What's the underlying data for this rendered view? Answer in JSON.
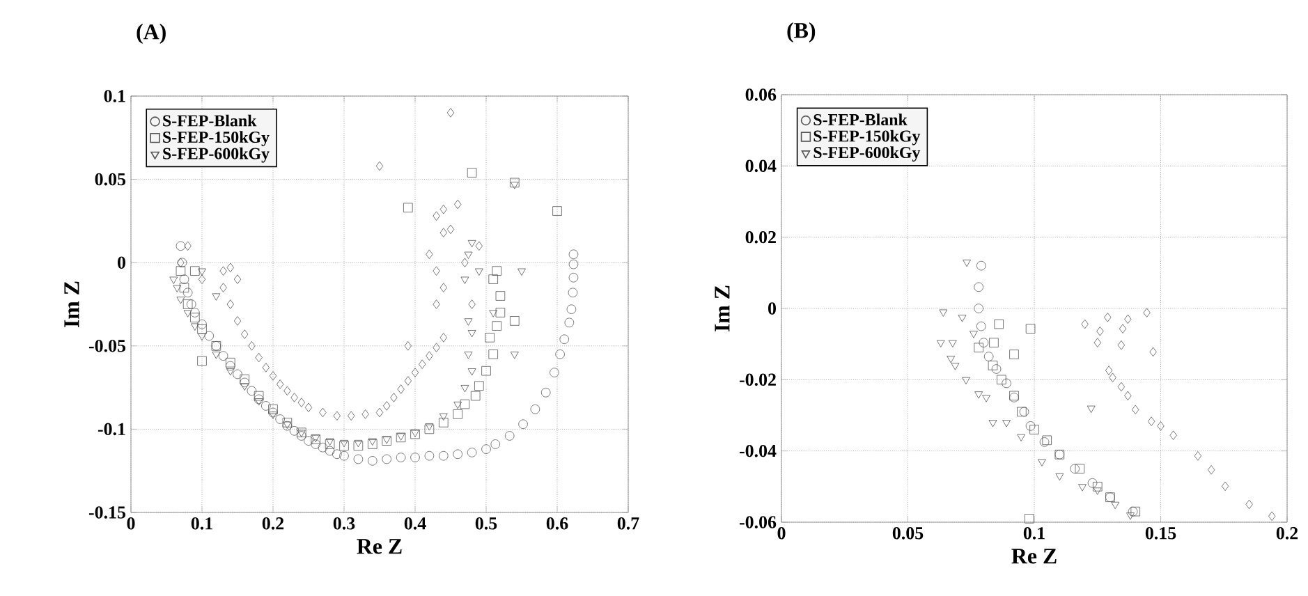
{
  "chart_data": [
    {
      "type": "scatter",
      "title": "(A)",
      "xlabel": "Re Z",
      "ylabel": "Im Z",
      "xlim": [
        0,
        0.7
      ],
      "ylim": [
        -0.15,
        0.1
      ],
      "xticks": [
        0,
        0.1,
        0.2,
        0.3,
        0.4,
        0.5,
        0.6,
        0.7
      ],
      "yticks": [
        -0.15,
        -0.1,
        -0.05,
        0,
        0.05,
        0.1
      ],
      "grid": true,
      "legend": "top left",
      "series": [
        {
          "name": "S-FEP-Blank",
          "marker": "circle",
          "color": "#555555",
          "x": [
            0.07,
            0.072,
            0.075,
            0.08,
            0.085,
            0.09,
            0.1,
            0.11,
            0.12,
            0.13,
            0.14,
            0.15,
            0.16,
            0.17,
            0.18,
            0.19,
            0.2,
            0.21,
            0.22,
            0.23,
            0.24,
            0.25,
            0.26,
            0.27,
            0.28,
            0.29,
            0.3,
            0.32,
            0.34,
            0.36,
            0.38,
            0.4,
            0.42,
            0.44,
            0.46,
            0.48,
            0.5,
            0.513,
            0.533,
            0.552,
            0.569,
            0.584,
            0.596,
            0.604,
            0.61,
            0.617,
            0.62,
            0.622,
            0.623,
            0.623,
            0.623
          ],
          "values": [
            0.01,
            0.0,
            -0.01,
            -0.018,
            -0.025,
            -0.03,
            -0.037,
            -0.044,
            -0.05,
            -0.056,
            -0.062,
            -0.067,
            -0.072,
            -0.077,
            -0.082,
            -0.086,
            -0.09,
            -0.094,
            -0.098,
            -0.101,
            -0.104,
            -0.107,
            -0.109,
            -0.111,
            -0.113,
            -0.115,
            -0.116,
            -0.118,
            -0.119,
            -0.118,
            -0.117,
            -0.117,
            -0.116,
            -0.116,
            -0.115,
            -0.114,
            -0.112,
            -0.109,
            -0.104,
            -0.097,
            -0.088,
            -0.078,
            -0.066,
            -0.055,
            -0.046,
            -0.036,
            -0.028,
            -0.018,
            -0.009,
            -0.001,
            0.005
          ]
        },
        {
          "name": "S-FEP-150kGy",
          "marker": "square",
          "color": "#555555",
          "x": [
            0.07,
            0.075,
            0.08,
            0.09,
            0.1,
            0.12,
            0.14,
            0.16,
            0.18,
            0.2,
            0.22,
            0.24,
            0.26,
            0.28,
            0.3,
            0.32,
            0.34,
            0.36,
            0.38,
            0.4,
            0.42,
            0.44,
            0.46,
            0.47,
            0.485,
            0.49,
            0.5,
            0.51,
            0.505,
            0.515,
            0.52,
            0.52,
            0.51,
            0.515,
            0.54,
            0.1,
            0.09,
            0.39,
            0.48,
            0.54,
            0.6
          ],
          "values": [
            -0.005,
            -0.015,
            -0.025,
            -0.033,
            -0.04,
            -0.05,
            -0.06,
            -0.07,
            -0.08,
            -0.088,
            -0.096,
            -0.102,
            -0.106,
            -0.109,
            -0.11,
            -0.11,
            -0.109,
            -0.107,
            -0.105,
            -0.103,
            -0.1,
            -0.096,
            -0.091,
            -0.085,
            -0.08,
            -0.074,
            -0.065,
            -0.055,
            -0.045,
            -0.038,
            -0.03,
            -0.02,
            -0.01,
            -0.005,
            -0.035,
            -0.059,
            -0.005,
            0.033,
            0.054,
            0.048,
            0.031
          ]
        },
        {
          "name": "S-FEP-600kGy",
          "marker": "triangle",
          "color": "#555555",
          "x": [
            0.06,
            0.065,
            0.07,
            0.08,
            0.09,
            0.1,
            0.12,
            0.14,
            0.16,
            0.18,
            0.2,
            0.22,
            0.24,
            0.26,
            0.28,
            0.3,
            0.32,
            0.34,
            0.36,
            0.38,
            0.4,
            0.42,
            0.44,
            0.46,
            0.47,
            0.48,
            0.475,
            0.48,
            0.475,
            0.49,
            0.475,
            0.48,
            0.54,
            0.55,
            0.54,
            0.51,
            0.47,
            0.12,
            0.1
          ],
          "values": [
            -0.01,
            -0.015,
            -0.022,
            -0.03,
            -0.038,
            -0.044,
            -0.055,
            -0.065,
            -0.074,
            -0.083,
            -0.091,
            -0.097,
            -0.102,
            -0.105,
            -0.107,
            -0.108,
            -0.108,
            -0.107,
            -0.106,
            -0.104,
            -0.102,
            -0.098,
            -0.092,
            -0.085,
            -0.075,
            -0.065,
            -0.055,
            -0.042,
            -0.035,
            -0.005,
            0.005,
            0.012,
            0.047,
            -0.005,
            -0.055,
            -0.03,
            -0.01,
            -0.02,
            -0.005
          ]
        },
        {
          "marker": "diamond",
          "color": "#555555",
          "x": [
            0.13,
            0.14,
            0.15,
            0.13,
            0.14,
            0.15,
            0.16,
            0.17,
            0.18,
            0.19,
            0.2,
            0.21,
            0.22,
            0.23,
            0.24,
            0.25,
            0.27,
            0.29,
            0.31,
            0.33,
            0.35,
            0.36,
            0.37,
            0.38,
            0.39,
            0.4,
            0.41,
            0.42,
            0.43,
            0.44,
            0.39,
            0.43,
            0.44,
            0.43,
            0.42,
            0.44,
            0.43,
            0.44,
            0.45,
            0.46,
            0.47,
            0.48,
            0.49,
            0.45,
            0.35,
            0.08,
            0.07,
            0.1
          ],
          "values": [
            -0.005,
            -0.003,
            -0.01,
            -0.015,
            -0.025,
            -0.035,
            -0.043,
            -0.05,
            -0.057,
            -0.063,
            -0.068,
            -0.073,
            -0.077,
            -0.081,
            -0.084,
            -0.087,
            -0.09,
            -0.092,
            -0.092,
            -0.091,
            -0.09,
            -0.086,
            -0.081,
            -0.076,
            -0.071,
            -0.066,
            -0.061,
            -0.056,
            -0.051,
            -0.045,
            -0.05,
            -0.025,
            -0.015,
            -0.005,
            0.005,
            0.018,
            0.028,
            0.032,
            0.02,
            0.035,
            0.0,
            -0.025,
            0.01,
            0.09,
            0.058,
            0.01,
            0.0,
            -0.01
          ]
        }
      ]
    },
    {
      "type": "scatter",
      "title": "(B)",
      "xlabel": "Re Z",
      "ylabel": "Im Z",
      "xlim": [
        0,
        0.2
      ],
      "ylim": [
        -0.06,
        0.06
      ],
      "xticks": [
        0,
        0.05,
        0.1,
        0.15,
        0.2
      ],
      "yticks": [
        -0.06,
        -0.04,
        -0.02,
        0,
        0.02,
        0.04,
        0.06
      ],
      "grid": true,
      "legend": "top left",
      "series": [
        {
          "name": "S-FEP-Blank",
          "marker": "circle",
          "color": "#555555",
          "x": [
            0.079,
            0.078,
            0.078,
            0.079,
            0.08,
            0.082,
            0.085,
            0.089,
            0.092,
            0.096,
            0.0985,
            0.104,
            0.11,
            0.116,
            0.123,
            0.13,
            0.139
          ],
          "values": [
            0.012,
            0.006,
            0.0,
            -0.005,
            -0.0096,
            -0.0135,
            -0.017,
            -0.021,
            -0.025,
            -0.029,
            -0.033,
            -0.0375,
            -0.041,
            -0.045,
            -0.049,
            -0.053,
            -0.057
          ]
        },
        {
          "name": "S-FEP-150kGy",
          "marker": "square",
          "color": "#555555",
          "x": [
            0.086,
            0.0985,
            0.084,
            0.078,
            0.092,
            0.0836,
            0.087,
            0.092,
            0.095,
            0.1,
            0.105,
            0.11,
            0.118,
            0.125,
            0.13,
            0.14,
            0.098
          ],
          "values": [
            -0.0044,
            -0.0057,
            -0.0096,
            -0.011,
            -0.0129,
            -0.016,
            -0.02,
            -0.0245,
            -0.029,
            -0.034,
            -0.037,
            -0.041,
            -0.045,
            -0.05,
            -0.053,
            -0.057,
            -0.059
          ]
        },
        {
          "name": "S-FEP-600kGy",
          "marker": "triangle",
          "color": "#555555",
          "x": [
            0.0733,
            0.064,
            0.0715,
            0.076,
            0.063,
            0.0677,
            0.067,
            0.0687,
            0.073,
            0.078,
            0.081,
            0.0836,
            0.089,
            0.0948,
            0.103,
            0.11,
            0.119,
            0.125,
            0.132,
            0.138,
            0.1225
          ],
          "values": [
            0.013,
            -0.001,
            -0.0025,
            -0.007,
            -0.0096,
            -0.0096,
            -0.014,
            -0.016,
            -0.02,
            -0.024,
            -0.025,
            -0.032,
            -0.032,
            -0.036,
            -0.043,
            -0.047,
            -0.05,
            -0.051,
            -0.055,
            -0.058,
            -0.028
          ]
        },
        {
          "marker": "diamond",
          "color": "#555555",
          "x": [
            0.12,
            0.129,
            0.126,
            0.125,
            0.135,
            0.137,
            0.1445,
            0.1344,
            0.147,
            0.1295,
            0.131,
            0.1344,
            0.137,
            0.14,
            0.1463,
            0.15,
            0.155,
            0.1647,
            0.17,
            0.1755,
            0.185,
            0.194
          ],
          "values": [
            -0.0044,
            -0.0025,
            -0.0064,
            -0.0096,
            -0.0057,
            -0.003,
            -0.0012,
            -0.0103,
            -0.0122,
            -0.0174,
            -0.0194,
            -0.022,
            -0.0245,
            -0.0284,
            -0.0317,
            -0.033,
            -0.0356,
            -0.0414,
            -0.0453,
            -0.0499,
            -0.055,
            -0.0583
          ]
        }
      ]
    }
  ]
}
